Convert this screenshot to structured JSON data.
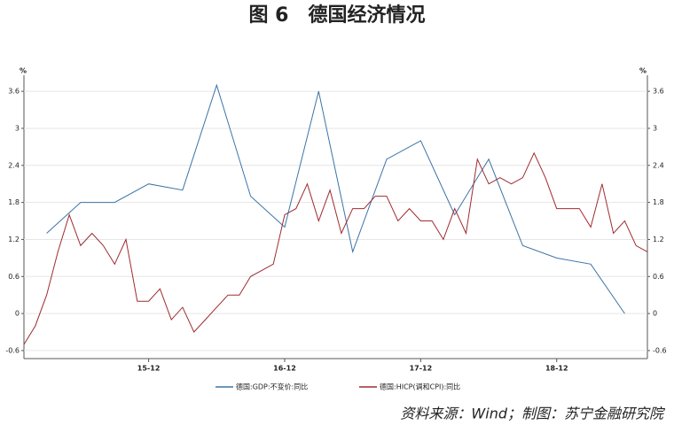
{
  "chart_data": {
    "type": "line",
    "title": "图 6　德国经济情况",
    "y_unit": "%",
    "y2_unit": "%",
    "source": "资料来源：Wind；制图：苏宁金融研究院",
    "xlim": [
      "15-01",
      "19-08"
    ],
    "xticks": [
      "15-12",
      "16-12",
      "17-12",
      "18-12"
    ],
    "ylim": [
      -0.73,
      3.86
    ],
    "yticks": [
      -0.6,
      0.0,
      0.6,
      1.2,
      1.8,
      2.4,
      3.0,
      3.6
    ],
    "y2lim": [
      -0.73,
      3.86
    ],
    "y2ticks": [
      -0.6,
      0.0,
      0.6,
      1.2,
      1.8,
      2.4,
      3.0,
      3.6
    ],
    "grid": true,
    "legend": "bottom",
    "series": [
      {
        "name": "德国:GDP:不变价:同比",
        "color": "#3b74a6",
        "x": [
          "15-03",
          "15-06",
          "15-09",
          "15-12",
          "16-03",
          "16-06",
          "16-09",
          "16-12",
          "17-03",
          "17-06",
          "17-09",
          "17-12",
          "18-03",
          "18-06",
          "18-09",
          "18-12",
          "19-03",
          "19-06"
        ],
        "values": [
          1.3,
          1.8,
          1.8,
          2.1,
          2.0,
          3.7,
          1.9,
          1.4,
          3.6,
          1.0,
          2.5,
          2.8,
          1.6,
          2.5,
          1.1,
          0.9,
          0.8,
          0.0
        ]
      },
      {
        "name": "德国:HICP(调和CPI):同比",
        "color": "#9e2b30",
        "x": [
          "15-01",
          "15-02",
          "15-03",
          "15-04",
          "15-05",
          "15-06",
          "15-07",
          "15-08",
          "15-09",
          "15-10",
          "15-11",
          "15-12",
          "16-01",
          "16-02",
          "16-03",
          "16-04",
          "16-05",
          "16-06",
          "16-07",
          "16-08",
          "16-09",
          "16-10",
          "16-11",
          "16-12",
          "17-01",
          "17-02",
          "17-03",
          "17-04",
          "17-05",
          "17-06",
          "17-07",
          "17-08",
          "17-09",
          "17-10",
          "17-11",
          "17-12",
          "18-01",
          "18-02",
          "18-03",
          "18-04",
          "18-05",
          "18-06",
          "18-07",
          "18-08",
          "18-09",
          "18-10",
          "18-11",
          "18-12",
          "19-01",
          "19-02",
          "19-03",
          "19-04",
          "19-05",
          "19-06",
          "19-07",
          "19-08"
        ],
        "values": [
          -0.5,
          -0.2,
          0.3,
          1.0,
          1.6,
          1.1,
          1.3,
          1.1,
          0.8,
          1.2,
          0.2,
          0.2,
          0.4,
          -0.1,
          0.1,
          -0.3,
          -0.1,
          0.1,
          0.3,
          0.3,
          0.6,
          0.7,
          0.8,
          1.6,
          1.7,
          2.1,
          1.5,
          2.0,
          1.3,
          1.7,
          1.7,
          1.9,
          1.9,
          1.5,
          1.7,
          1.5,
          1.5,
          1.2,
          1.7,
          1.3,
          2.5,
          2.1,
          2.2,
          2.1,
          2.2,
          2.6,
          2.2,
          1.7,
          1.7,
          1.7,
          1.4,
          2.1,
          1.3,
          1.5,
          1.1,
          1.0
        ]
      }
    ]
  }
}
